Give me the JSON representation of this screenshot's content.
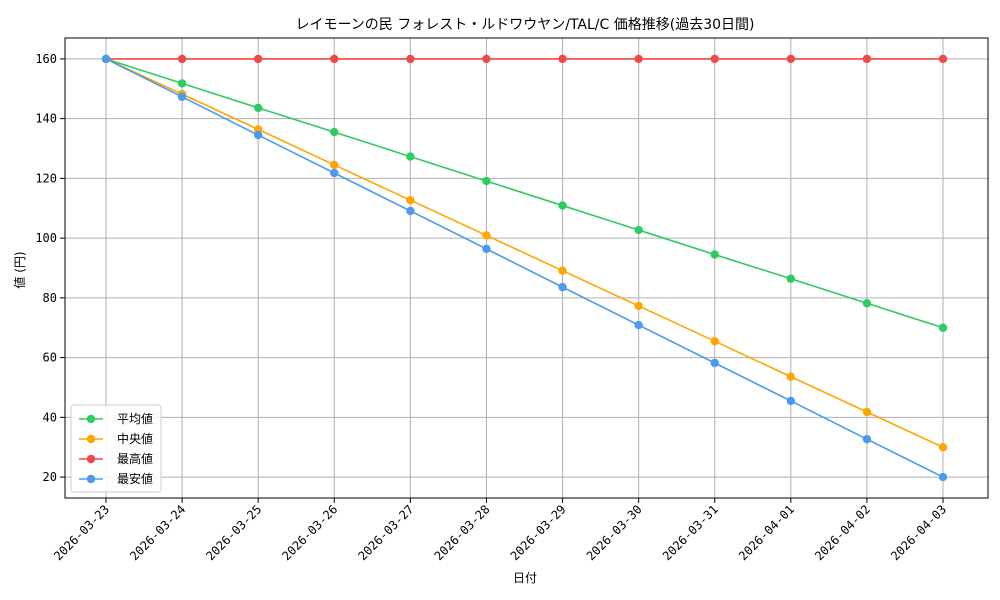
{
  "chart_data": {
    "type": "line",
    "title": "レイモーンの民 フォレスト・ルドワウヤン/TAL/C 価格推移(過去30日間)",
    "xlabel": "日付",
    "ylabel": "値 (円)",
    "categories": [
      "2026-03-23",
      "2026-03-24",
      "2026-03-25",
      "2026-03-26",
      "2026-03-27",
      "2026-03-28",
      "2026-03-29",
      "2026-03-30",
      "2026-03-31",
      "2026-04-01",
      "2026-04-02",
      "2026-04-03"
    ],
    "ylim": [
      13,
      167
    ],
    "yticks": [
      20,
      40,
      60,
      80,
      100,
      120,
      140,
      160
    ],
    "grid": true,
    "legend_position": "lower-left",
    "series": [
      {
        "name": "平均値",
        "color": "#2ecc60",
        "values": [
          160,
          151.8,
          143.6,
          135.5,
          127.3,
          119.1,
          110.9,
          102.7,
          94.5,
          86.4,
          78.2,
          70
        ]
      },
      {
        "name": "中央値",
        "color": "#ffa500",
        "values": [
          160,
          148.2,
          136.4,
          124.5,
          112.7,
          100.9,
          89.1,
          77.3,
          65.5,
          53.6,
          41.8,
          30
        ]
      },
      {
        "name": "最高値",
        "color": "#f04848",
        "values": [
          160,
          160,
          160,
          160,
          160,
          160,
          160,
          160,
          160,
          160,
          160,
          160
        ]
      },
      {
        "name": "最安値",
        "color": "#4a9bf0",
        "values": [
          160,
          147.3,
          134.5,
          121.8,
          109.1,
          96.4,
          83.6,
          70.9,
          58.2,
          45.5,
          32.7,
          20
        ]
      }
    ]
  }
}
